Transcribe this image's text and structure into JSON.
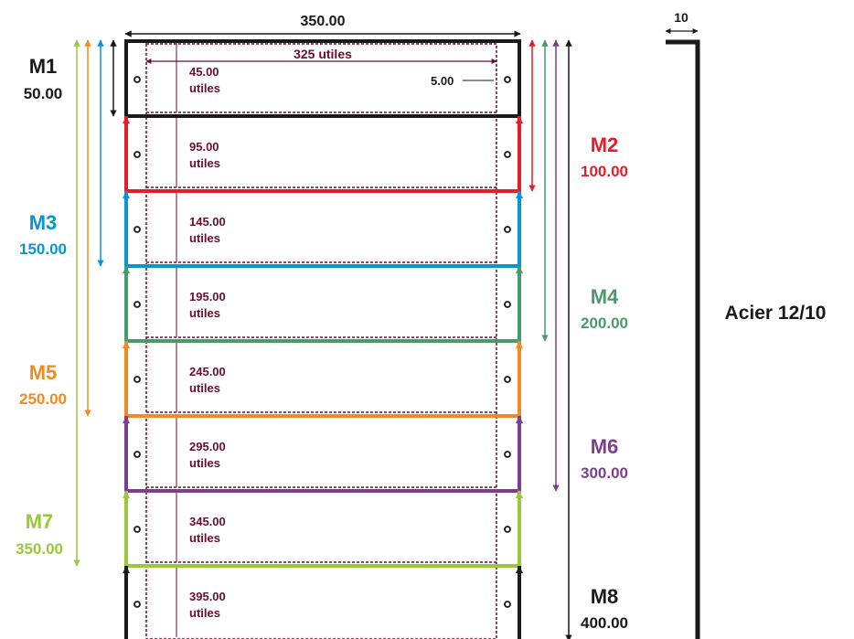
{
  "dimensions": {
    "width_label": "350.00",
    "usable_width_label": "325 utiles",
    "hole_offset_label": "5.00",
    "flange_label": "10",
    "material_label": "Acier 12/10"
  },
  "colors": {
    "black": "#1a1a1a",
    "dashed": "#6b0e2c",
    "M1": "#1a1a1a",
    "M2": "#e3202a",
    "M3": "#0a94d3",
    "M4": "#4a9a6c",
    "M5": "#f08a24",
    "M6": "#7d3f8c",
    "M7": "#9ac83c",
    "M8": "#1a1a1a"
  },
  "modules": [
    {
      "id": "M1",
      "name": "M1",
      "height": "50.00",
      "usable": "45.00",
      "usable_word": "utiles"
    },
    {
      "id": "M2",
      "name": "M2",
      "height": "100.00",
      "usable": "95.00",
      "usable_word": "utiles"
    },
    {
      "id": "M3",
      "name": "M3",
      "height": "150.00",
      "usable": "145.00",
      "usable_word": "utiles"
    },
    {
      "id": "M4",
      "name": "M4",
      "height": "200.00",
      "usable": "195.00",
      "usable_word": "utiles"
    },
    {
      "id": "M5",
      "name": "M5",
      "height": "250.00",
      "usable": "245.00",
      "usable_word": "utiles"
    },
    {
      "id": "M6",
      "name": "M6",
      "height": "300.00",
      "usable": "295.00",
      "usable_word": "utiles"
    },
    {
      "id": "M7",
      "name": "M7",
      "height": "350.00",
      "usable": "345.00",
      "usable_word": "utiles"
    },
    {
      "id": "M8",
      "name": "M8",
      "height": "400.00",
      "usable": "395.00",
      "usable_word": "utiles"
    }
  ]
}
